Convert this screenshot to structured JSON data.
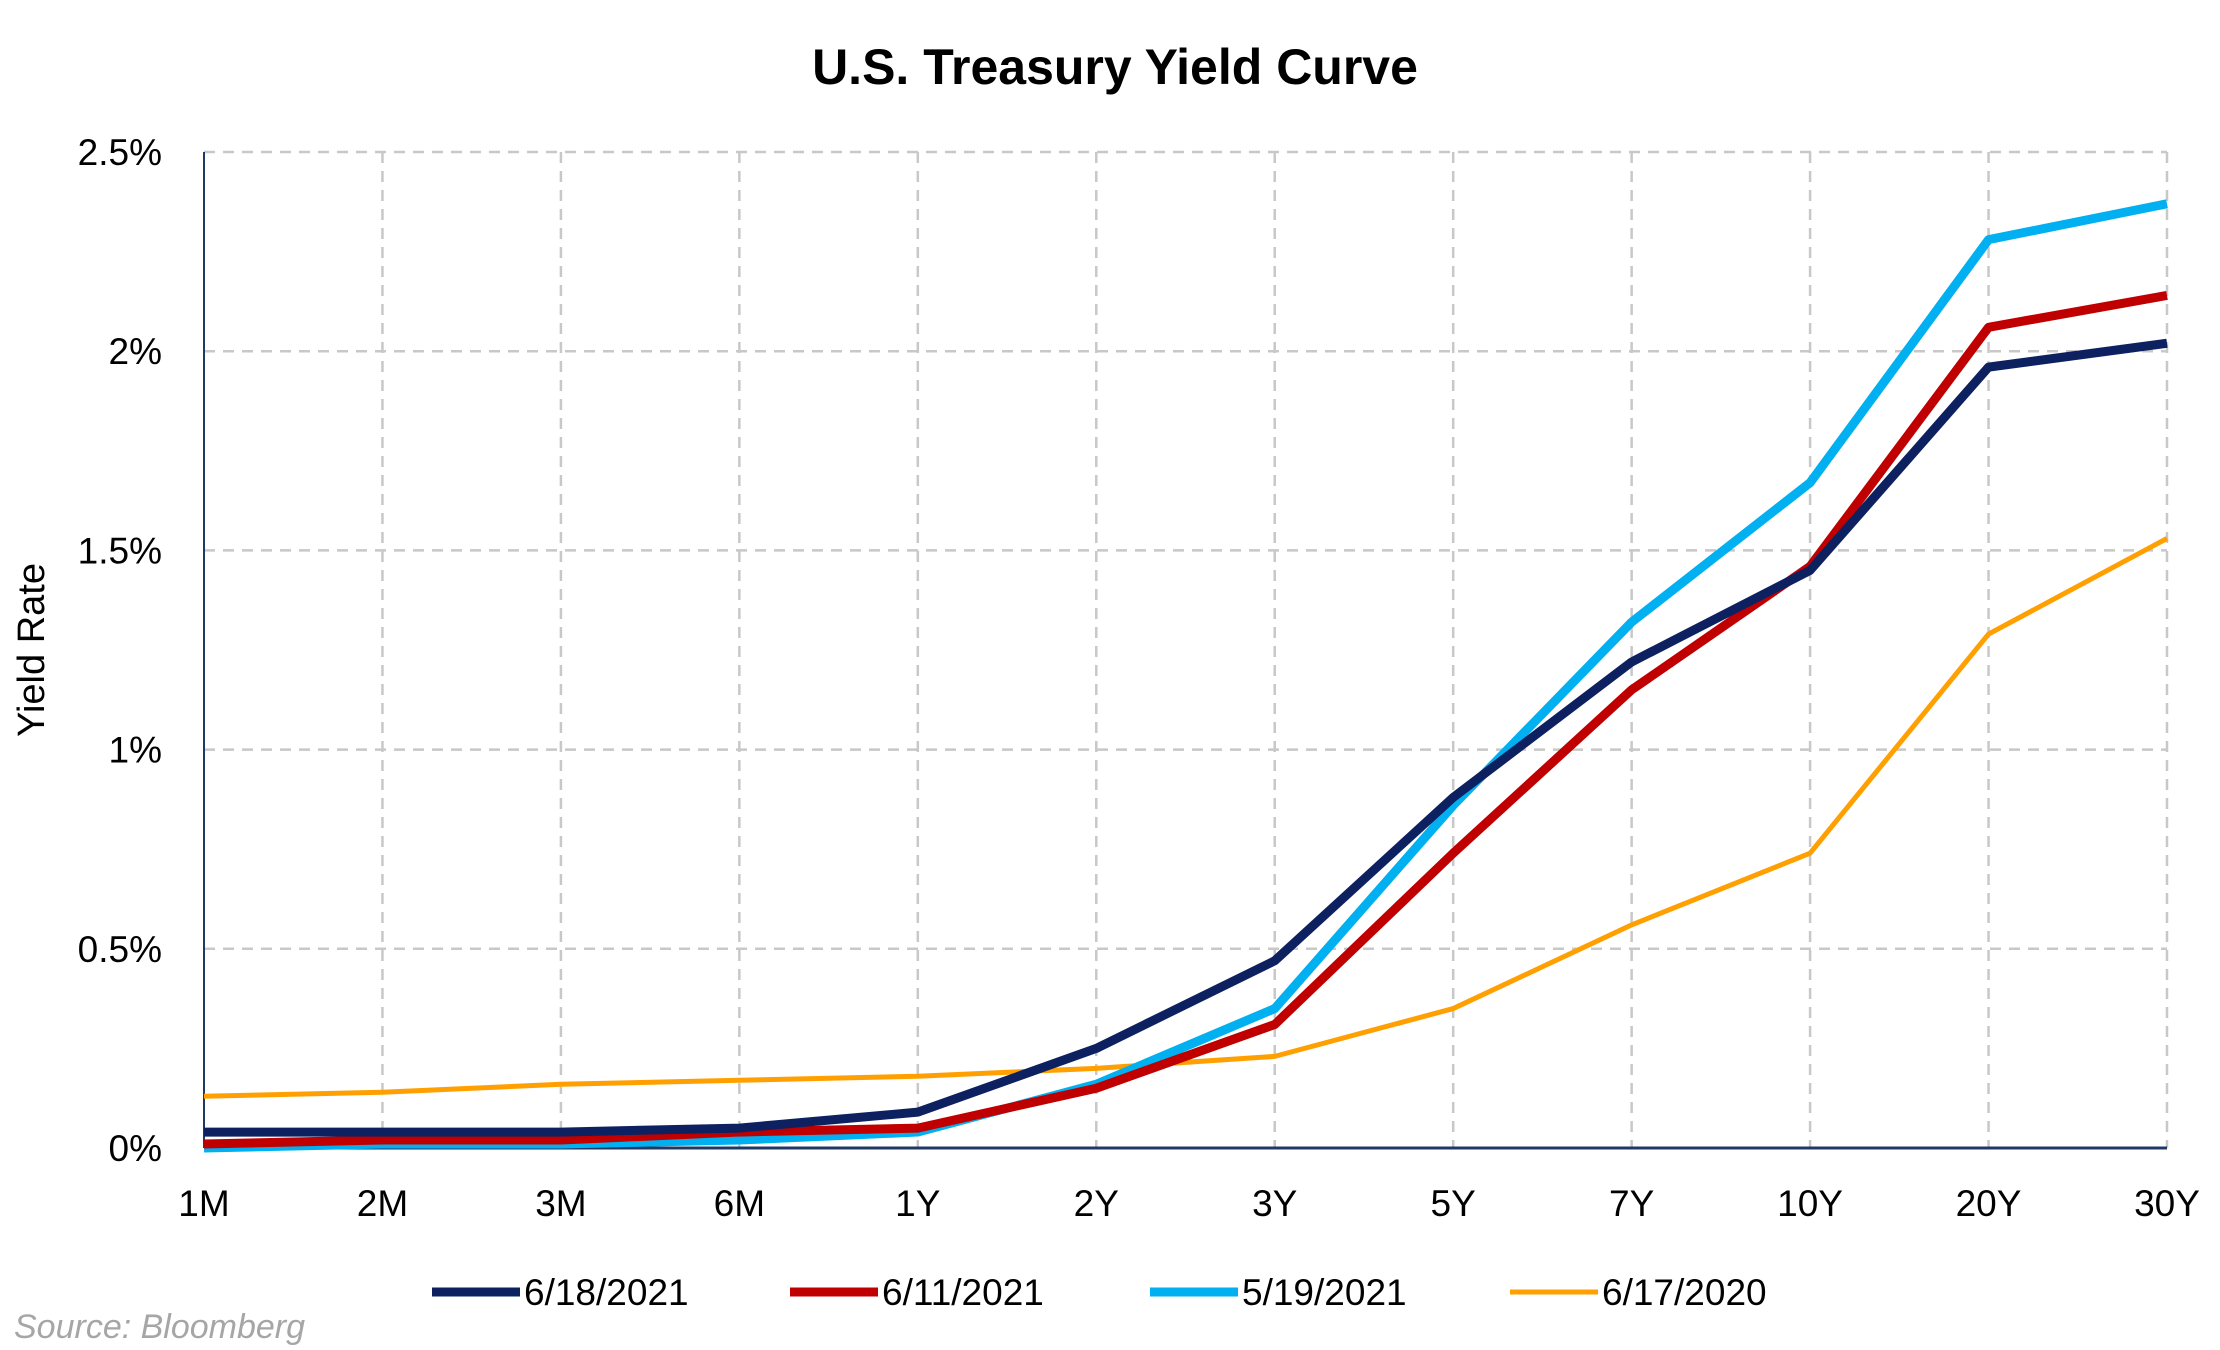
{
  "chart_data": {
    "type": "line",
    "title": "U.S. Treasury Yield Curve",
    "xlabel": "",
    "ylabel": "Yield Rate",
    "categories": [
      "1M",
      "2M",
      "3M",
      "6M",
      "1Y",
      "2Y",
      "3Y",
      "5Y",
      "7Y",
      "10Y",
      "20Y",
      "30Y"
    ],
    "y_ticks": [
      0,
      0.5,
      1,
      1.5,
      2,
      2.5
    ],
    "y_tick_labels": [
      "0%",
      "0.5%",
      "1%",
      "1.5%",
      "2%",
      "2.5%"
    ],
    "ylim": [
      0,
      2.5
    ],
    "grid": "dashed, both axes",
    "legend_position": "bottom",
    "series": [
      {
        "name": "6/18/2021",
        "color": "#0d2160",
        "width": "thick",
        "values": [
          0.04,
          0.04,
          0.04,
          0.05,
          0.09,
          0.25,
          0.47,
          0.88,
          1.22,
          1.45,
          1.96,
          2.02
        ]
      },
      {
        "name": "6/11/2021",
        "color": "#c00000",
        "width": "thick",
        "values": [
          0.01,
          0.02,
          0.02,
          0.04,
          0.05,
          0.15,
          0.31,
          0.74,
          1.15,
          1.46,
          2.06,
          2.14
        ]
      },
      {
        "name": "5/19/2021",
        "color": "#00b0f0",
        "width": "thick",
        "values": [
          0.0,
          0.01,
          0.01,
          0.02,
          0.04,
          0.16,
          0.35,
          0.86,
          1.32,
          1.67,
          2.28,
          2.37
        ]
      },
      {
        "name": "6/17/2020",
        "color": "#ffa000",
        "width": "thin",
        "values": [
          0.13,
          0.14,
          0.16,
          0.17,
          0.18,
          0.2,
          0.23,
          0.35,
          0.56,
          0.74,
          1.29,
          1.53
        ]
      }
    ]
  },
  "source": "Source: Bloomberg"
}
